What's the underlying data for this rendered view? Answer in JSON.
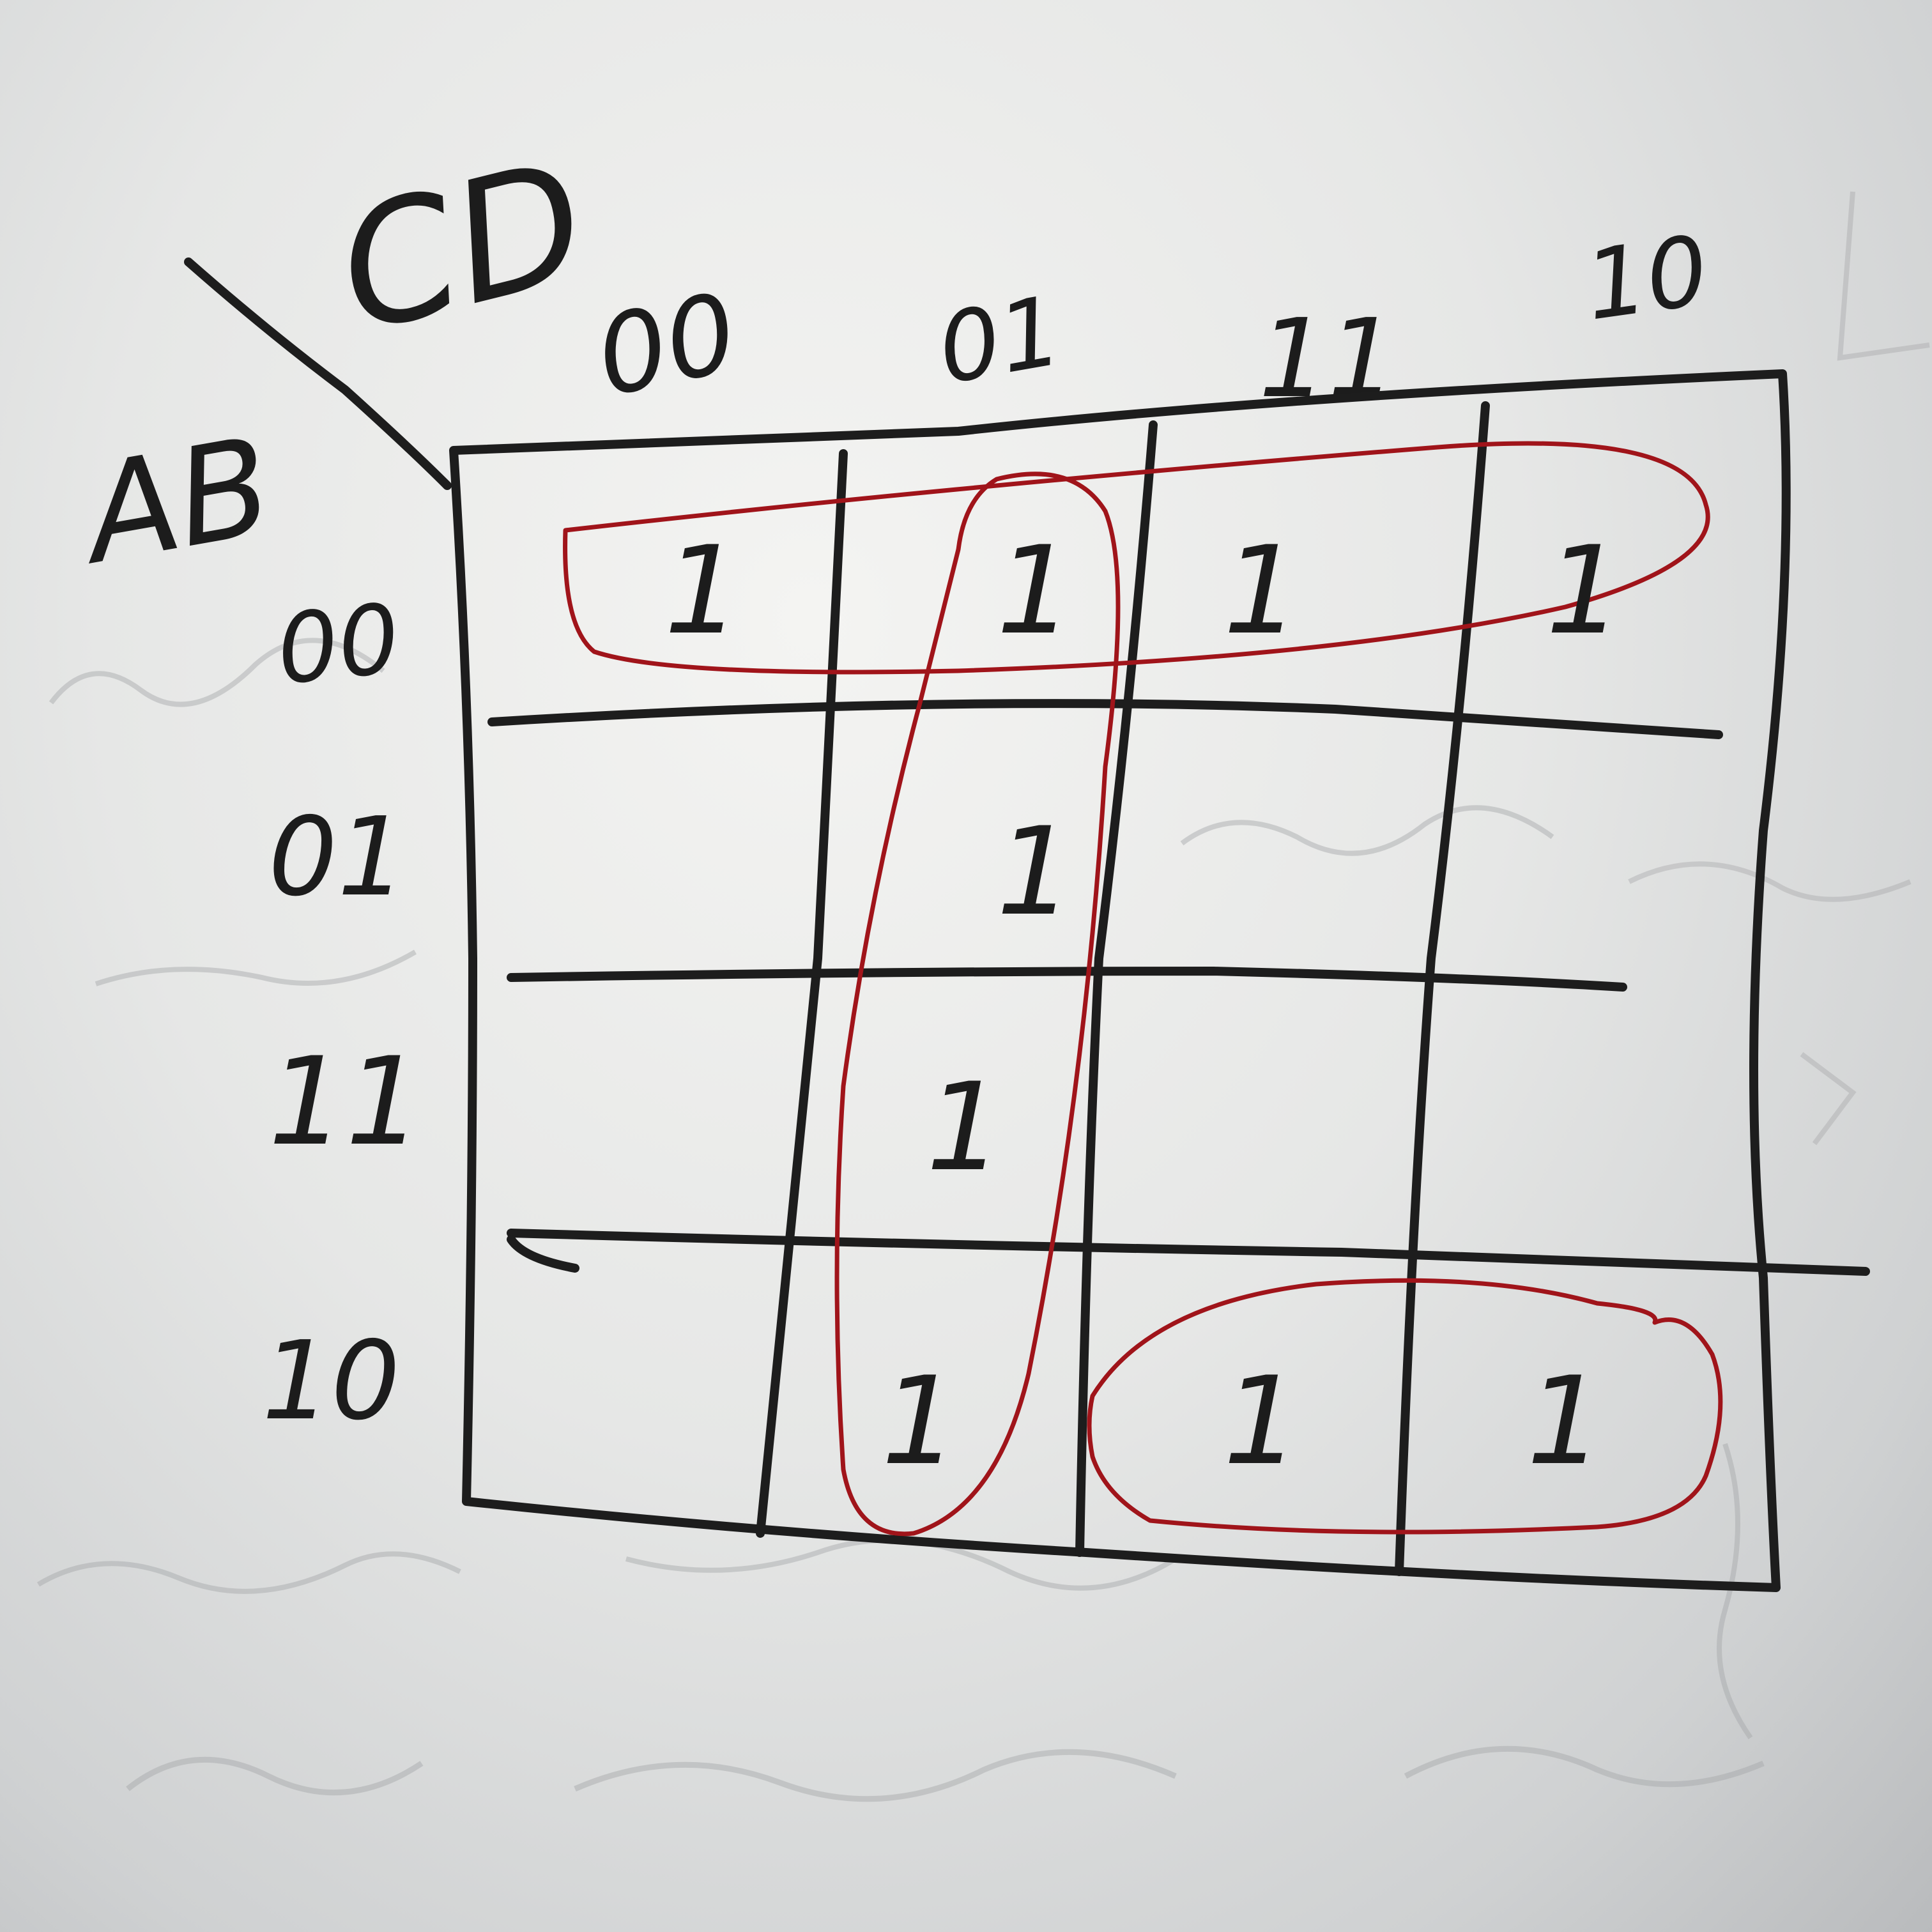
{
  "kmap": {
    "column_variables": "CD",
    "row_variables": "AB",
    "column_headers": [
      "00",
      "01",
      "11",
      "10"
    ],
    "row_headers": [
      "00",
      "01",
      "11",
      "10"
    ],
    "cells": [
      [
        "1",
        "1",
        "1",
        "1"
      ],
      [
        "",
        "1",
        "",
        ""
      ],
      [
        "",
        "1",
        "",
        ""
      ],
      [
        "",
        "1",
        "1",
        "1"
      ]
    ],
    "groups": [
      {
        "cells": [
          [
            0,
            0
          ],
          [
            0,
            1
          ],
          [
            0,
            2
          ],
          [
            0,
            3
          ]
        ]
      },
      {
        "cells": [
          [
            0,
            1
          ],
          [
            1,
            1
          ],
          [
            2,
            1
          ],
          [
            3,
            1
          ]
        ]
      },
      {
        "cells": [
          [
            3,
            2
          ],
          [
            3,
            3
          ]
        ]
      }
    ]
  },
  "colors": {
    "ink": "#1d1d1d",
    "loop": "#a0141a",
    "paper": "#e6e7e6"
  }
}
